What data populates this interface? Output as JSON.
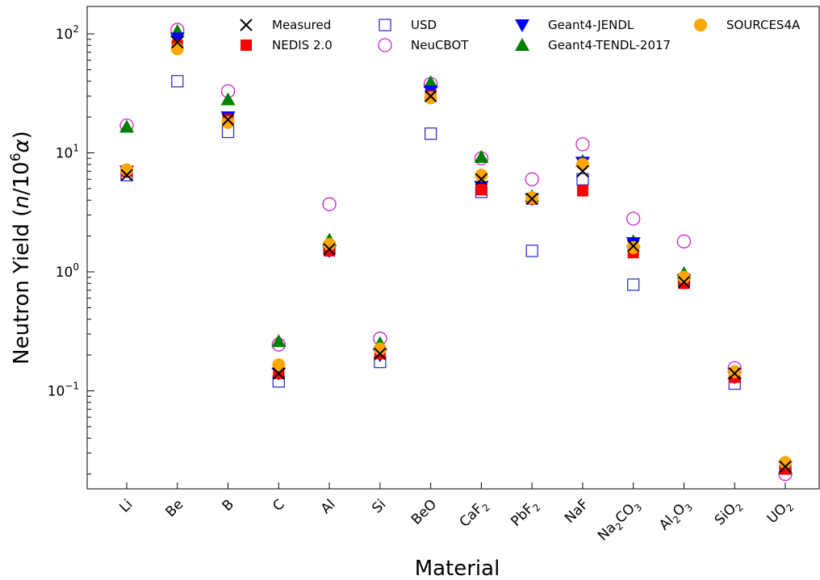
{
  "chart_data": {
    "type": "scatter",
    "title": "",
    "xlabel": "Material",
    "ylabel_parts": [
      "Neutron Yield (",
      "n",
      "/10",
      "6",
      "α",
      ")"
    ],
    "yscale": "log",
    "ylim": [
      0.015,
      170
    ],
    "ytick_labels": [
      {
        "base": "10",
        "exp": "−1",
        "value": 0.1
      },
      {
        "base": "10",
        "exp": "0",
        "value": 1
      },
      {
        "base": "10",
        "exp": "1",
        "value": 10
      },
      {
        "base": "10",
        "exp": "2",
        "value": 100
      }
    ],
    "categories": [
      {
        "name": "Li",
        "parts": [
          [
            "Li",
            false
          ]
        ]
      },
      {
        "name": "Be",
        "parts": [
          [
            "Be",
            false
          ]
        ]
      },
      {
        "name": "B",
        "parts": [
          [
            "B",
            false
          ]
        ]
      },
      {
        "name": "C",
        "parts": [
          [
            "C",
            false
          ]
        ]
      },
      {
        "name": "Al",
        "parts": [
          [
            "Al",
            false
          ]
        ]
      },
      {
        "name": "Si",
        "parts": [
          [
            "Si",
            false
          ]
        ]
      },
      {
        "name": "BeO",
        "parts": [
          [
            "BeO",
            false
          ]
        ]
      },
      {
        "name": "CaF2",
        "parts": [
          [
            "CaF",
            false
          ],
          [
            "2",
            true
          ]
        ]
      },
      {
        "name": "PbF2",
        "parts": [
          [
            "PbF",
            false
          ],
          [
            "2",
            true
          ]
        ]
      },
      {
        "name": "NaF",
        "parts": [
          [
            "NaF",
            false
          ]
        ]
      },
      {
        "name": "Na2CO3",
        "parts": [
          [
            "Na",
            false
          ],
          [
            "2",
            true
          ],
          [
            "CO",
            false
          ],
          [
            "3",
            true
          ]
        ]
      },
      {
        "name": "Al2O3",
        "parts": [
          [
            "Al",
            false
          ],
          [
            "2",
            true
          ],
          [
            "O",
            false
          ],
          [
            "3",
            true
          ]
        ]
      },
      {
        "name": "SiO2",
        "parts": [
          [
            "SiO",
            false
          ],
          [
            "2",
            true
          ]
        ]
      },
      {
        "name": "UO2",
        "parts": [
          [
            "UO",
            false
          ],
          [
            "2",
            true
          ]
        ]
      }
    ],
    "legend_position": "upper-right",
    "series": [
      {
        "name": "Measured",
        "marker": "x",
        "color": "#000000",
        "values": [
          6.5,
          85,
          19,
          0.14,
          1.55,
          0.205,
          30,
          6.0,
          4.1,
          7.0,
          1.65,
          0.82,
          0.14,
          0.023
        ]
      },
      {
        "name": "NEDIS 2.0",
        "marker": "square",
        "color": "#ff0000",
        "values": [
          7.0,
          80,
          19,
          0.14,
          1.5,
          0.205,
          30,
          4.9,
          4.1,
          4.8,
          1.45,
          0.8,
          0.13,
          0.022
        ]
      },
      {
        "name": "USD",
        "marker": "square-open",
        "color": "#3333cc",
        "values": [
          6.5,
          40,
          15,
          0.12,
          1.6,
          0.175,
          14.5,
          4.7,
          1.5,
          6.0,
          0.78,
          0.86,
          0.115,
          0.023
        ]
      },
      {
        "name": "NeuCBOT",
        "marker": "circle-open",
        "color": "#cc22cc",
        "values": [
          17,
          108,
          33,
          0.245,
          3.7,
          0.275,
          38,
          9.0,
          6.0,
          11.8,
          2.8,
          1.8,
          0.155,
          0.02
        ]
      },
      {
        "name": "Geant4-JENDL",
        "marker": "triangle-down",
        "color": "#0000ff",
        "values": [
          7.0,
          92,
          20,
          0.14,
          1.5,
          0.2,
          33,
          5.2,
          4.1,
          8.3,
          1.75,
          0.85,
          0.13,
          0.023
        ]
      },
      {
        "name": "Geant4-TENDL-2017",
        "marker": "triangle-up",
        "color": "#008000",
        "values": [
          16.5,
          105,
          28,
          0.26,
          1.85,
          0.25,
          39,
          9.2,
          4.3,
          8.5,
          1.8,
          0.97,
          0.14,
          0.022
        ]
      },
      {
        "name": "SOURCES4A",
        "marker": "circle",
        "color": "#ffa500",
        "values": [
          7.2,
          75,
          18,
          0.165,
          1.7,
          0.225,
          29,
          6.5,
          4.2,
          8.0,
          1.6,
          0.9,
          0.145,
          0.025
        ]
      }
    ]
  }
}
